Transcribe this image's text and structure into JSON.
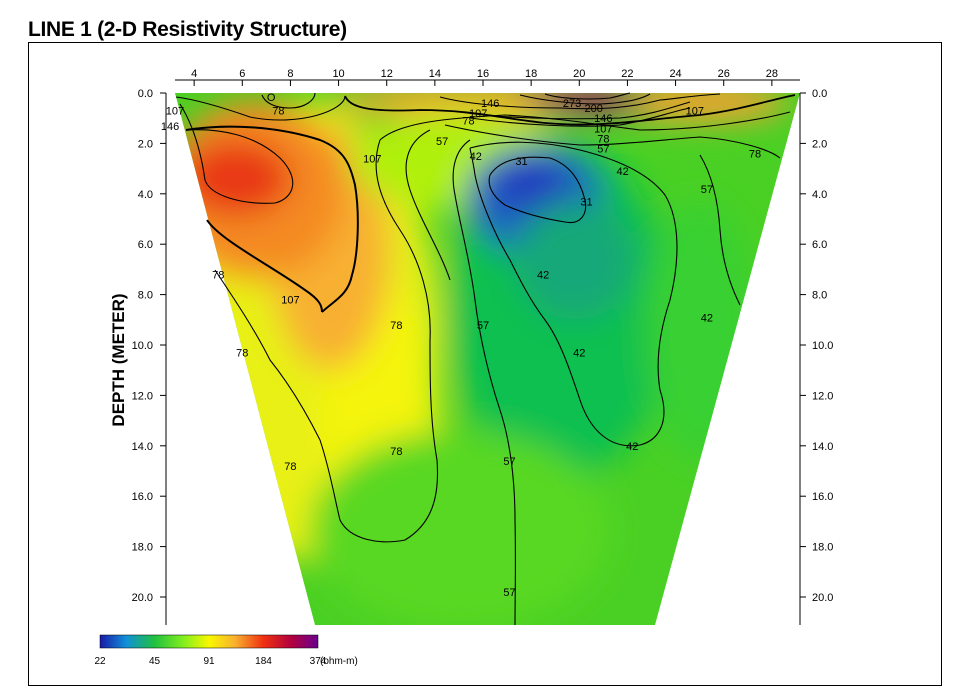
{
  "title": "LINE 1 (2-D Resistivity Structure)",
  "chart_data": {
    "type": "heatmap",
    "title": "LINE 1 (2-D Resistivity Structure)",
    "xlabel": "",
    "ylabel": "DEPTH (METER)",
    "x_ticks": [
      4,
      6,
      8,
      10,
      12,
      14,
      16,
      18,
      20,
      22,
      24,
      26,
      28
    ],
    "y_ticks": [
      "0.0",
      "2.0",
      "4.0",
      "6.0",
      "8.0",
      "10.0",
      "12.0",
      "14.0",
      "16.0",
      "18.0",
      "20.0"
    ],
    "xlim": [
      2,
      30
    ],
    "ylim": [
      0,
      21
    ],
    "y_inverted": true,
    "contour_levels": [
      31,
      42,
      57,
      78,
      107,
      146,
      200,
      273
    ],
    "contour_labels": [
      {
        "text": "107",
        "x": 3.2,
        "y": 0.7
      },
      {
        "text": "146",
        "x": 3.0,
        "y": 1.3
      },
      {
        "text": "78",
        "x": 7.5,
        "y": 0.7
      },
      {
        "text": "107",
        "x": 11.4,
        "y": 2.6
      },
      {
        "text": "146",
        "x": 16.3,
        "y": 0.4
      },
      {
        "text": "107",
        "x": 15.8,
        "y": 0.8
      },
      {
        "text": "78",
        "x": 15.4,
        "y": 1.1
      },
      {
        "text": "273",
        "x": 19.7,
        "y": 0.4
      },
      {
        "text": "200",
        "x": 20.6,
        "y": 0.6
      },
      {
        "text": "146",
        "x": 21.0,
        "y": 1.0
      },
      {
        "text": "107",
        "x": 21.0,
        "y": 1.4
      },
      {
        "text": "78",
        "x": 21.0,
        "y": 1.8
      },
      {
        "text": "57",
        "x": 21.0,
        "y": 2.2
      },
      {
        "text": "107",
        "x": 24.8,
        "y": 0.7
      },
      {
        "text": "57",
        "x": 14.3,
        "y": 1.9
      },
      {
        "text": "42",
        "x": 15.7,
        "y": 2.5
      },
      {
        "text": "31",
        "x": 17.6,
        "y": 2.7
      },
      {
        "text": "78",
        "x": 27.3,
        "y": 2.4
      },
      {
        "text": "42",
        "x": 21.8,
        "y": 3.1
      },
      {
        "text": "57",
        "x": 25.3,
        "y": 3.8
      },
      {
        "text": "31",
        "x": 20.3,
        "y": 4.3
      },
      {
        "text": "78",
        "x": 5.0,
        "y": 7.2
      },
      {
        "text": "107",
        "x": 8.0,
        "y": 8.2
      },
      {
        "text": "42",
        "x": 18.5,
        "y": 7.2
      },
      {
        "text": "57",
        "x": 16.0,
        "y": 9.2
      },
      {
        "text": "78",
        "x": 12.4,
        "y": 9.2
      },
      {
        "text": "42",
        "x": 25.3,
        "y": 8.9
      },
      {
        "text": "78",
        "x": 6.0,
        "y": 10.3
      },
      {
        "text": "42",
        "x": 20.0,
        "y": 10.3
      },
      {
        "text": "78",
        "x": 12.4,
        "y": 14.2
      },
      {
        "text": "57",
        "x": 17.1,
        "y": 14.6
      },
      {
        "text": "42",
        "x": 22.2,
        "y": 14.0
      },
      {
        "text": "78",
        "x": 8.0,
        "y": 14.8
      },
      {
        "text": "57",
        "x": 17.1,
        "y": 19.8
      },
      {
        "text": "O",
        "x": 7.2,
        "y": 0.15
      }
    ],
    "colorbar": {
      "ticks": [
        "22",
        "45",
        "91",
        "184",
        "374"
      ],
      "unit": "(ohm-m)",
      "colors": [
        "#1a1aa8",
        "#10a0d0",
        "#22d022",
        "#8ef020",
        "#f8f800",
        "#f8a020",
        "#e82020",
        "#a80040",
        "#600090"
      ]
    }
  }
}
